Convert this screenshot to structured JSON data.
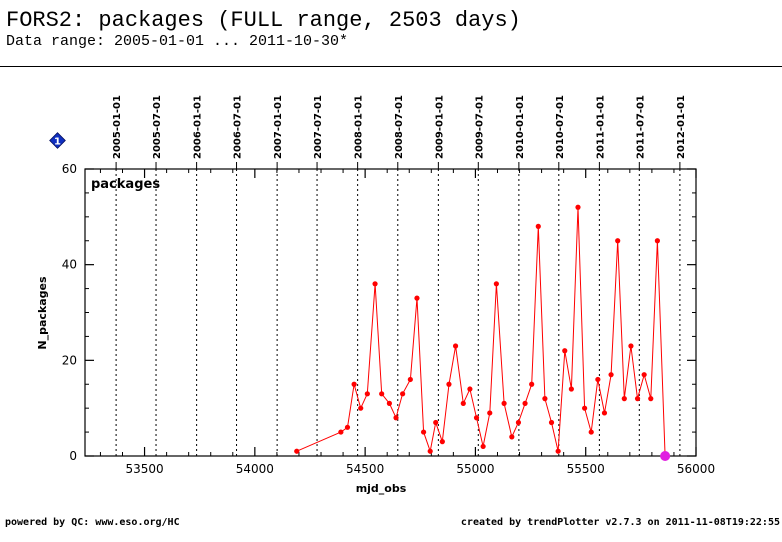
{
  "header": {
    "title": "FORS2: packages (FULL range, 2503 days)",
    "subtitle": "Data range: 2005-01-01 ... 2011-10-30*"
  },
  "footer": {
    "left": "powered by QC: www.eso.org/HC",
    "right": "created by trendPlotter v2.7.3 on 2011-11-08T19:22:55"
  },
  "badge": {
    "label": "1",
    "color": "#1030c0"
  },
  "chart_data": {
    "type": "line",
    "title": "packages",
    "xlabel": "mjd_obs",
    "ylabel": "N_packages",
    "xlim": [
      53230,
      56000
    ],
    "ylim": [
      0,
      60
    ],
    "x_ticks": [
      53500,
      54000,
      54500,
      55000,
      55500,
      56000
    ],
    "y_ticks": [
      0,
      20,
      40,
      60
    ],
    "grid": false,
    "date_markers": [
      {
        "label": "2005-01-01",
        "mjd": 53371
      },
      {
        "label": "2005-07-01",
        "mjd": 53552
      },
      {
        "label": "2006-01-01",
        "mjd": 53736
      },
      {
        "label": "2006-07-01",
        "mjd": 53917
      },
      {
        "label": "2007-01-01",
        "mjd": 54101
      },
      {
        "label": "2007-07-01",
        "mjd": 54282
      },
      {
        "label": "2008-01-01",
        "mjd": 54466
      },
      {
        "label": "2008-07-01",
        "mjd": 54648
      },
      {
        "label": "2009-01-01",
        "mjd": 54832
      },
      {
        "label": "2009-07-01",
        "mjd": 55013
      },
      {
        "label": "2010-01-01",
        "mjd": 55197
      },
      {
        "label": "2010-07-01",
        "mjd": 55378
      },
      {
        "label": "2011-01-01",
        "mjd": 55562
      },
      {
        "label": "2011-07-01",
        "mjd": 55743
      },
      {
        "label": "2012-01-01",
        "mjd": 55927
      }
    ],
    "series": [
      {
        "color": "#ff0000",
        "points": [
          [
            54190,
            1
          ],
          [
            54390,
            5
          ],
          [
            54420,
            6
          ],
          [
            54450,
            15
          ],
          [
            54480,
            10
          ],
          [
            54510,
            13
          ],
          [
            54545,
            36
          ],
          [
            54575,
            13
          ],
          [
            54610,
            11
          ],
          [
            54640,
            8
          ],
          [
            54670,
            13
          ],
          [
            54705,
            16
          ],
          [
            54735,
            33
          ],
          [
            54765,
            5
          ],
          [
            54795,
            1
          ],
          [
            54820,
            7
          ],
          [
            54850,
            3
          ],
          [
            54880,
            15
          ],
          [
            54910,
            23
          ],
          [
            54945,
            11
          ],
          [
            54975,
            14
          ],
          [
            55005,
            8
          ],
          [
            55035,
            2
          ],
          [
            55065,
            9
          ],
          [
            55095,
            36
          ],
          [
            55130,
            11
          ],
          [
            55165,
            4
          ],
          [
            55195,
            7
          ],
          [
            55225,
            11
          ],
          [
            55255,
            15
          ],
          [
            55285,
            48
          ],
          [
            55315,
            12
          ],
          [
            55345,
            7
          ],
          [
            55375,
            1
          ],
          [
            55405,
            22
          ],
          [
            55435,
            14
          ],
          [
            55465,
            52
          ],
          [
            55495,
            10
          ],
          [
            55525,
            5
          ],
          [
            55555,
            16
          ],
          [
            55585,
            9
          ],
          [
            55615,
            17
          ],
          [
            55645,
            45
          ],
          [
            55675,
            12
          ],
          [
            55705,
            23
          ],
          [
            55735,
            12
          ],
          [
            55765,
            17
          ],
          [
            55795,
            12
          ],
          [
            55825,
            45
          ],
          [
            55860,
            0
          ]
        ]
      }
    ],
    "highlight_point": {
      "x": 55860,
      "y": 0,
      "color": "#e020e0"
    }
  }
}
